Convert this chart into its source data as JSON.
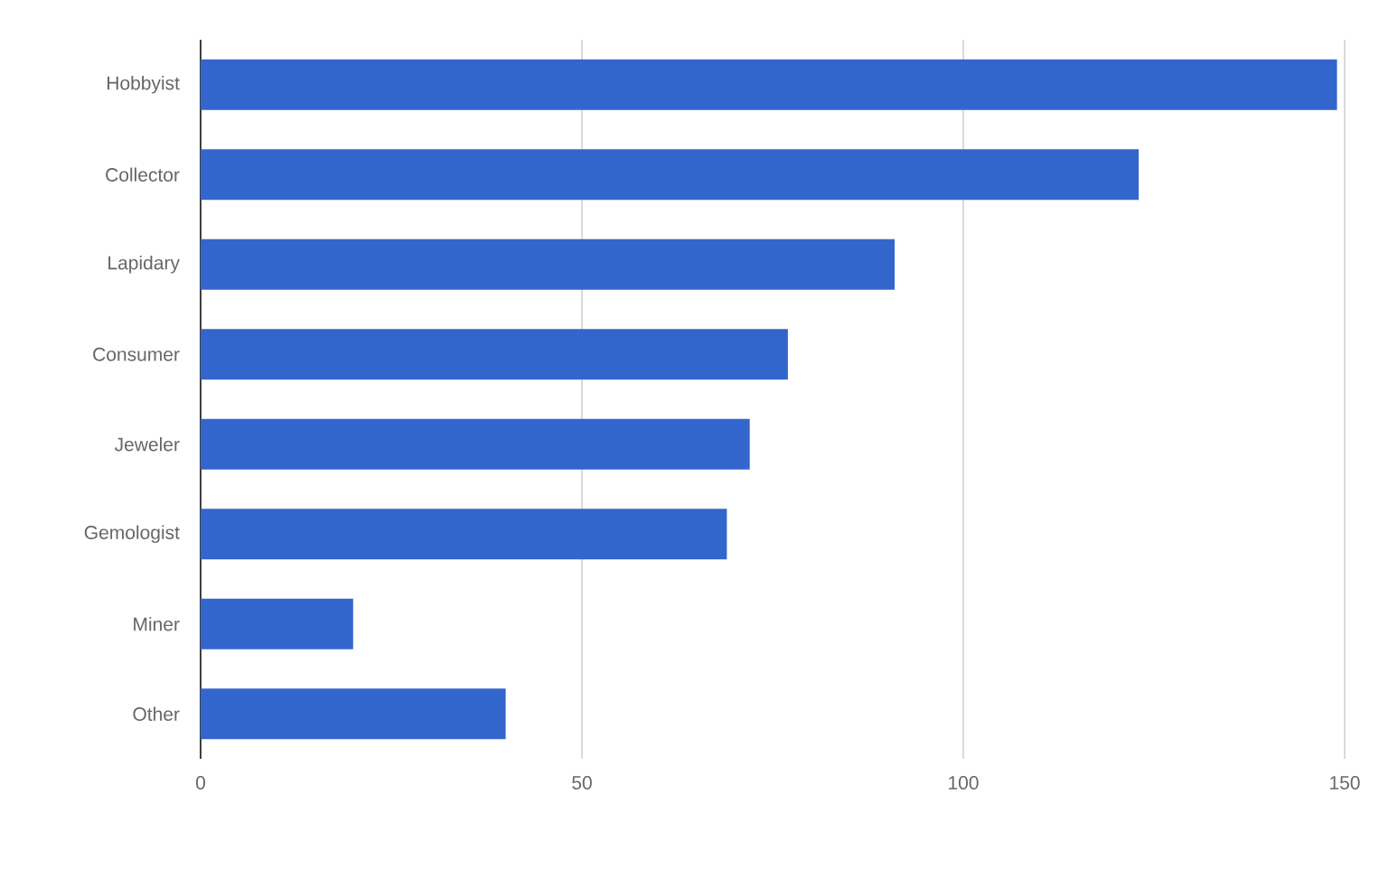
{
  "chart_data": {
    "type": "bar",
    "orientation": "horizontal",
    "categories": [
      "Hobbyist",
      "Collector",
      "Lapidary",
      "Consumer",
      "Jeweler",
      "Gemologist",
      "Miner",
      "Other"
    ],
    "values": [
      149,
      123,
      91,
      77,
      72,
      69,
      20,
      40
    ],
    "color": "#3366cc",
    "xlim": [
      0,
      150
    ],
    "xticks": [
      0,
      50,
      100,
      150
    ],
    "grid": "x"
  }
}
